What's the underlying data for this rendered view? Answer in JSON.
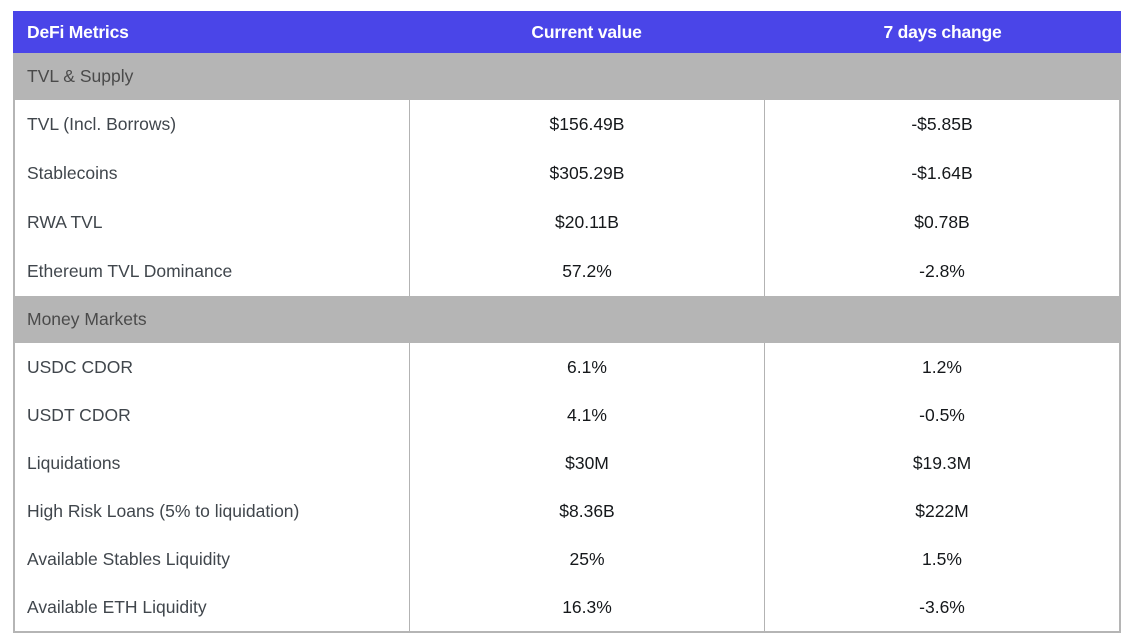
{
  "colors": {
    "header_bg": "#4a45e8",
    "header_text": "#ffffff",
    "section_bg": "#b5b5b5",
    "section_text": "#4a4a4a",
    "row_bg": "#ffffff",
    "label_text": "#40464c",
    "value_text": "#15181b",
    "border": "#b5b5b5"
  },
  "chart_data": {
    "type": "table",
    "title": "DeFi Metrics",
    "columns": [
      "DeFi Metrics",
      "Current value",
      "7 days change"
    ],
    "sections": [
      {
        "title": "TVL & Supply",
        "rows": [
          {
            "metric": "TVL (Incl. Borrows)",
            "current_value": "$156.49B",
            "seven_day_change": "-$5.85B"
          },
          {
            "metric": "Stablecoins",
            "current_value": "$305.29B",
            "seven_day_change": "-$1.64B"
          },
          {
            "metric": "RWA TVL",
            "current_value": "$20.11B",
            "seven_day_change": "$0.78B"
          },
          {
            "metric": "Ethereum TVL Dominance",
            "current_value": "57.2%",
            "seven_day_change": "-2.8%"
          }
        ]
      },
      {
        "title": "Money Markets",
        "rows": [
          {
            "metric": "USDC CDOR",
            "current_value": "6.1%",
            "seven_day_change": "1.2%"
          },
          {
            "metric": "USDT CDOR",
            "current_value": "4.1%",
            "seven_day_change": "-0.5%"
          },
          {
            "metric": "Liquidations",
            "current_value": "$30M",
            "seven_day_change": "$19.3M"
          },
          {
            "metric": "High Risk Loans (5% to liquidation)",
            "current_value": "$8.36B",
            "seven_day_change": "$222M"
          },
          {
            "metric": "Available Stables Liquidity",
            "current_value": "25%",
            "seven_day_change": "1.5%"
          },
          {
            "metric": "Available ETH Liquidity",
            "current_value": "16.3%",
            "seven_day_change": "-3.6%"
          }
        ]
      }
    ]
  }
}
